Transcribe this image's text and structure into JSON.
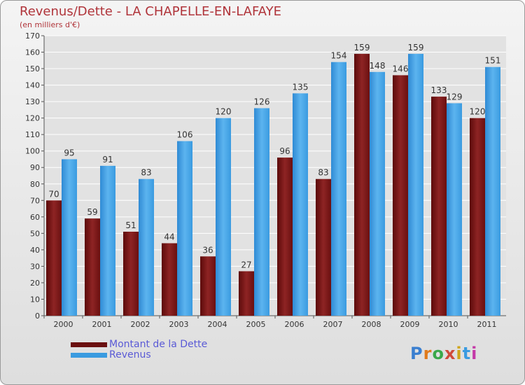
{
  "header": {
    "title": "Revenus/Dette - LA CHAPELLE-EN-LAFAYE",
    "subtitle": "(en milliers d'€)"
  },
  "legend": {
    "debt_label": "Montant de la Dette",
    "revenue_label": "Revenus"
  },
  "colors": {
    "debt": "#7a1515",
    "revenue": "#3a9be0",
    "title": "#b0343a",
    "legend_text": "#5a5ad6"
  },
  "logo": {
    "text": "Proxiti",
    "icon": "proxiti-logo"
  },
  "chart_data": {
    "type": "bar",
    "title": "Revenus/Dette - LA CHAPELLE-EN-LAFAYE",
    "ylabel": "(en milliers d'€)",
    "xlabel": "",
    "ylim": [
      0,
      170
    ],
    "y_ticks": [
      0,
      10,
      20,
      30,
      40,
      50,
      60,
      70,
      80,
      90,
      100,
      110,
      120,
      130,
      140,
      150,
      160,
      170
    ],
    "grid": true,
    "legend_position": "bottom-left",
    "categories": [
      "2000",
      "2001",
      "2002",
      "2003",
      "2004",
      "2005",
      "2006",
      "2007",
      "2008",
      "2009",
      "2010",
      "2011"
    ],
    "series": [
      {
        "name": "Montant de la Dette",
        "values": [
          70,
          59,
          51,
          44,
          36,
          27,
          96,
          83,
          159,
          146,
          133,
          120
        ]
      },
      {
        "name": "Revenus",
        "values": [
          95,
          91,
          83,
          106,
          120,
          126,
          135,
          154,
          148,
          159,
          129,
          151
        ]
      }
    ]
  }
}
